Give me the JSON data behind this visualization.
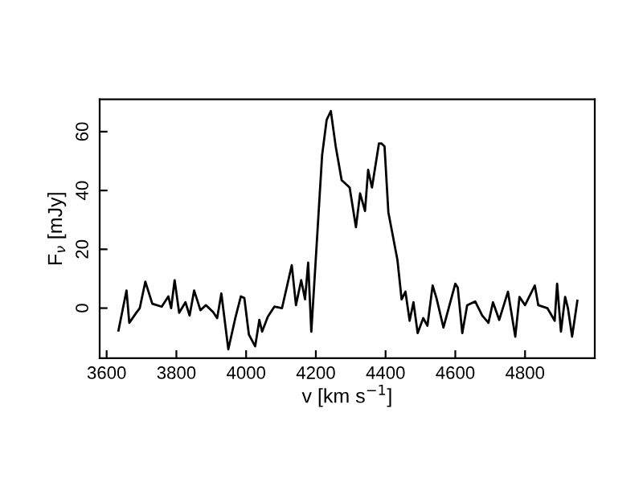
{
  "chart_data": {
    "type": "line",
    "xlabel": "v [km s$^{−1}$]",
    "ylabel": "F$_{ν}$ [mJy]",
    "xlim": [
      3580,
      5000
    ],
    "ylim": [
      -17,
      71
    ],
    "xticks": [
      3600,
      3800,
      4000,
      4200,
      4400,
      4600,
      4800
    ],
    "yticks": [
      0,
      20,
      40,
      60
    ],
    "grid": false,
    "legend": false,
    "series": [
      {
        "color": "#000000",
        "x": [
          3634,
          3657,
          3665,
          3685,
          3695,
          3711,
          3731,
          3758,
          3777,
          3785,
          3795,
          3808,
          3826,
          3838,
          3851,
          3869,
          3885,
          3905,
          3917,
          3929,
          3949,
          3969,
          3985,
          3995,
          4008,
          4026,
          4038,
          4046,
          4062,
          4081,
          4103,
          4131,
          4143,
          4158,
          4169,
          4178,
          4187,
          4200,
          4218,
          4231,
          4243,
          4257,
          4274,
          4297,
          4315,
          4327,
          4341,
          4350,
          4361,
          4381,
          4388,
          4397,
          4408,
          4434,
          4446,
          4457,
          4469,
          4480,
          4492,
          4508,
          4520,
          4535,
          4546,
          4566,
          4600,
          4607,
          4620,
          4634,
          4657,
          4677,
          4695,
          4708,
          4726,
          4751,
          4772,
          4784,
          4800,
          4828,
          4838,
          4864,
          4885,
          4892,
          4903,
          4915,
          4923,
          4935,
          4950
        ],
        "values": [
          -7.6,
          6,
          -5,
          -1.6,
          0,
          9,
          1.5,
          0.5,
          4,
          0,
          9.5,
          -1.6,
          2,
          -2.5,
          6,
          -0.7,
          1,
          -1.3,
          -3.4,
          5,
          -14,
          -3.4,
          4,
          3.4,
          -9,
          -13,
          -4,
          -8,
          -3,
          0.5,
          0,
          14.6,
          1,
          9.5,
          3,
          15.5,
          -8,
          17,
          52,
          64,
          67,
          55,
          43.5,
          41,
          27.5,
          39,
          33,
          47,
          41,
          56,
          56,
          55,
          32.6,
          16.4,
          3,
          5.6,
          -4.3,
          2,
          -8.5,
          -3.4,
          -6,
          7.7,
          3.4,
          -6.6,
          8.3,
          7,
          -8.5,
          1,
          2.3,
          -2.5,
          -5,
          2,
          -4,
          5.6,
          -9.7,
          3.8,
          1,
          7.7,
          1,
          0,
          -4.3,
          8.3,
          -8,
          3.8,
          0,
          -9.7,
          2.5
        ]
      }
    ]
  }
}
